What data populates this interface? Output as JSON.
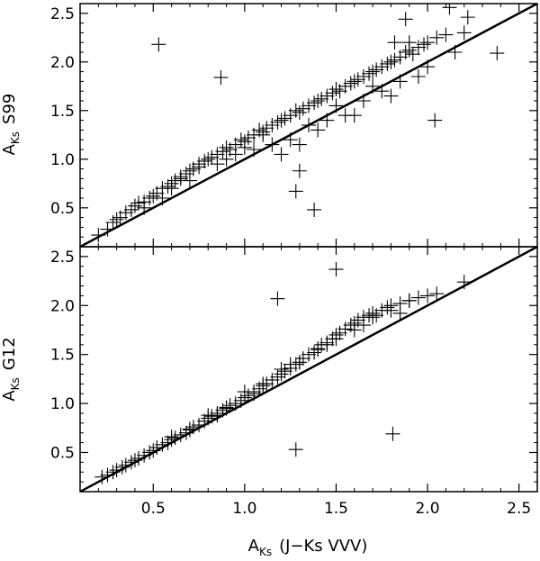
{
  "chart_data": [
    {
      "type": "scatter",
      "panel": "top",
      "ylabel_main": "A",
      "ylabel_sub": "Ks",
      "ylabel_suffix": "S99",
      "xlabel": "",
      "xlim": [
        0.1,
        2.6
      ],
      "ylim": [
        0.1,
        2.6
      ],
      "yticks": [
        0.5,
        1.0,
        1.5,
        2.0,
        2.5
      ],
      "ytick_labels": [
        "0.5",
        "1.0",
        "1.5",
        "2.0",
        "2.5"
      ],
      "xticks": [
        0.5,
        1.0,
        1.5,
        2.0,
        2.5
      ],
      "xtick_labels": [],
      "marker": "+",
      "reference_line": {
        "x": [
          0.1,
          2.6
        ],
        "y": [
          0.1,
          2.6
        ]
      },
      "points": {
        "x": [
          0.2,
          0.25,
          0.28,
          0.3,
          0.32,
          0.35,
          0.38,
          0.4,
          0.42,
          0.45,
          0.48,
          0.5,
          0.52,
          0.55,
          0.58,
          0.6,
          0.62,
          0.65,
          0.68,
          0.7,
          0.72,
          0.75,
          0.78,
          0.8,
          0.82,
          0.85,
          0.88,
          0.9,
          0.92,
          0.95,
          0.98,
          1.0,
          1.02,
          1.05,
          1.08,
          1.1,
          1.12,
          1.15,
          1.18,
          1.2,
          1.22,
          1.25,
          1.28,
          1.3,
          1.32,
          1.35,
          1.38,
          1.4,
          1.42,
          1.45,
          1.48,
          1.5,
          1.52,
          1.55,
          1.58,
          1.6,
          1.62,
          1.65,
          1.68,
          1.7,
          1.72,
          1.75,
          1.78,
          1.8,
          1.82,
          1.85,
          1.88,
          1.9,
          1.92,
          1.95,
          1.98,
          2.0,
          2.05,
          2.1,
          2.15,
          2.2,
          0.55,
          0.7,
          0.85,
          0.95,
          1.05,
          1.15,
          1.25,
          1.35,
          1.45,
          1.55,
          1.65,
          1.75,
          1.85,
          1.95,
          0.65,
          0.9,
          1.1,
          1.3,
          1.5,
          1.7,
          1.9,
          0.53,
          0.87,
          1.28,
          1.38,
          2.04,
          2.38,
          2.12,
          2.22,
          1.88,
          1.82,
          1.3,
          0.45,
          0.6,
          0.75,
          1.0,
          1.2,
          1.4,
          1.6,
          1.8,
          2.0
        ],
        "y": [
          0.22,
          0.28,
          0.35,
          0.38,
          0.4,
          0.45,
          0.48,
          0.52,
          0.55,
          0.56,
          0.6,
          0.62,
          0.65,
          0.7,
          0.72,
          0.75,
          0.78,
          0.82,
          0.85,
          0.88,
          0.9,
          0.95,
          0.98,
          1.0,
          1.02,
          1.05,
          1.08,
          1.12,
          1.1,
          1.15,
          1.2,
          1.18,
          1.22,
          1.25,
          1.3,
          1.28,
          1.32,
          1.35,
          1.38,
          1.4,
          1.42,
          1.45,
          1.5,
          1.48,
          1.52,
          1.55,
          1.58,
          1.6,
          1.62,
          1.65,
          1.68,
          1.72,
          1.7,
          1.75,
          1.78,
          1.8,
          1.82,
          1.85,
          1.88,
          1.9,
          1.92,
          1.95,
          1.98,
          2.0,
          2.02,
          2.05,
          2.1,
          2.12,
          2.08,
          2.15,
          2.18,
          2.2,
          2.25,
          2.28,
          2.1,
          2.3,
          0.6,
          0.78,
          0.95,
          1.05,
          1.1,
          1.15,
          1.2,
          1.35,
          1.4,
          1.45,
          1.6,
          1.7,
          1.8,
          1.85,
          0.8,
          1.0,
          1.25,
          1.15,
          1.55,
          1.75,
          2.2,
          2.18,
          1.84,
          0.67,
          0.48,
          1.4,
          2.09,
          2.56,
          2.46,
          2.44,
          2.2,
          0.88,
          0.5,
          0.7,
          0.92,
          1.12,
          1.05,
          1.3,
          1.45,
          1.65,
          1.95
        ]
      }
    },
    {
      "type": "scatter",
      "panel": "bottom",
      "ylabel_main": "A",
      "ylabel_sub": "Ks",
      "ylabel_suffix": "G12",
      "xlabel_main": "A",
      "xlabel_sub": "Ks",
      "xlabel_suffix": "(J−Ks VVV)",
      "xlim": [
        0.1,
        2.6
      ],
      "ylim": [
        0.1,
        2.6
      ],
      "yticks": [
        0.5,
        1.0,
        1.5,
        2.0,
        2.5
      ],
      "ytick_labels": [
        "0.5",
        "1.0",
        "1.5",
        "2.0",
        "2.5"
      ],
      "xticks": [
        0.5,
        1.0,
        1.5,
        2.0,
        2.5
      ],
      "xtick_labels": [
        "0.5",
        "1.0",
        "1.5",
        "2.0",
        "2.5"
      ],
      "marker": "+",
      "reference_line": {
        "x": [
          0.1,
          2.6
        ],
        "y": [
          0.1,
          2.6
        ]
      },
      "points": {
        "x": [
          0.22,
          0.25,
          0.28,
          0.3,
          0.33,
          0.35,
          0.38,
          0.4,
          0.42,
          0.45,
          0.48,
          0.5,
          0.52,
          0.55,
          0.58,
          0.6,
          0.62,
          0.65,
          0.68,
          0.7,
          0.72,
          0.75,
          0.78,
          0.8,
          0.82,
          0.85,
          0.88,
          0.9,
          0.92,
          0.95,
          0.98,
          1.0,
          1.02,
          1.05,
          1.08,
          1.1,
          1.12,
          1.15,
          1.18,
          1.2,
          1.22,
          1.25,
          1.28,
          1.3,
          1.32,
          1.35,
          1.38,
          1.4,
          1.42,
          1.45,
          1.48,
          1.5,
          1.52,
          1.55,
          1.58,
          1.6,
          1.62,
          1.65,
          1.68,
          1.7,
          1.72,
          1.75,
          1.78,
          1.8,
          1.85,
          1.9,
          1.95,
          2.0,
          2.05,
          2.2,
          0.6,
          0.8,
          1.0,
          1.2,
          1.4,
          1.6,
          1.8,
          0.7,
          0.9,
          1.1,
          1.3,
          1.5,
          1.7,
          1.9,
          1.18,
          1.5,
          1.28,
          1.81,
          1.25,
          1.45,
          1.65,
          1.85,
          0.85,
          1.05
        ],
        "y": [
          0.25,
          0.27,
          0.3,
          0.32,
          0.35,
          0.37,
          0.4,
          0.42,
          0.44,
          0.47,
          0.5,
          0.52,
          0.55,
          0.58,
          0.6,
          0.63,
          0.65,
          0.68,
          0.7,
          0.73,
          0.76,
          0.78,
          0.82,
          0.85,
          0.87,
          0.9,
          0.93,
          0.95,
          0.98,
          1.0,
          1.03,
          1.06,
          1.08,
          1.12,
          1.15,
          1.18,
          1.2,
          1.24,
          1.27,
          1.3,
          1.33,
          1.36,
          1.4,
          1.42,
          1.46,
          1.5,
          1.52,
          1.56,
          1.6,
          1.62,
          1.66,
          1.7,
          1.72,
          1.76,
          1.8,
          1.82,
          1.85,
          1.88,
          1.9,
          1.92,
          1.9,
          1.95,
          1.98,
          2.0,
          2.02,
          2.05,
          2.08,
          2.1,
          2.12,
          2.24,
          0.66,
          0.88,
          1.12,
          1.35,
          1.55,
          1.75,
          1.95,
          0.74,
          0.96,
          1.2,
          1.42,
          1.66,
          1.88,
          2.05,
          2.07,
          2.37,
          0.53,
          0.69,
          1.4,
          1.6,
          1.8,
          1.92,
          0.88,
          1.1
        ]
      }
    }
  ]
}
